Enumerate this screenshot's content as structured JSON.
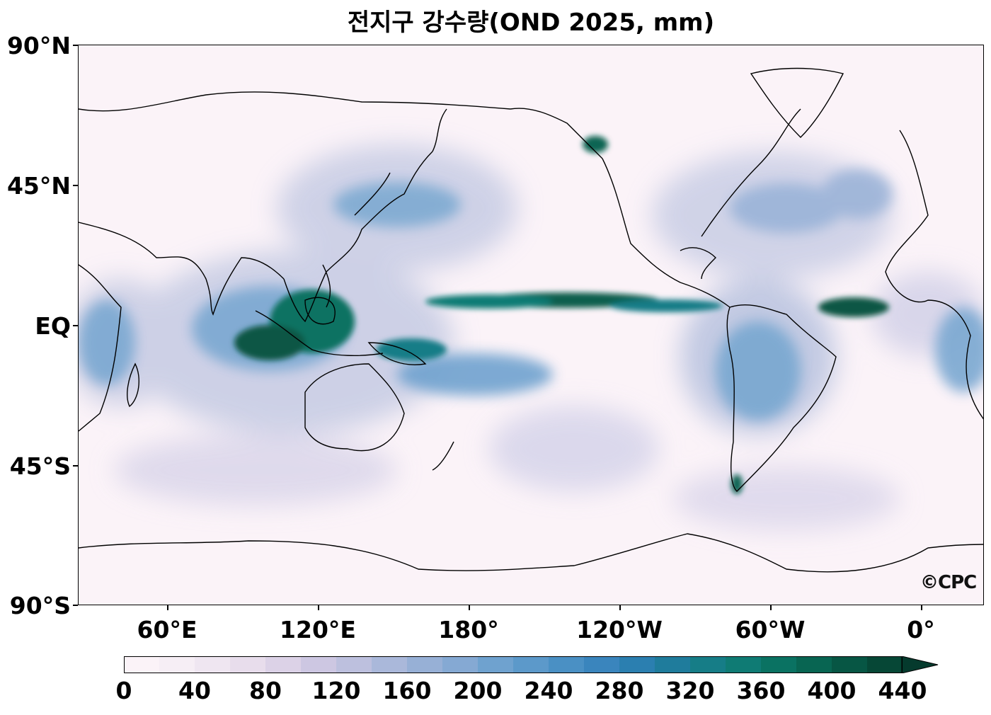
{
  "title": "전지구 강수량(OND 2025, mm)",
  "watermark": "©CPC",
  "lat_labels": [
    "90°N",
    "45°N",
    "EQ",
    "45°S",
    "90°S"
  ],
  "lon_labels": [
    "60°E",
    "120°E",
    "180°",
    "120°W",
    "60°W",
    "0°"
  ],
  "colorbar": {
    "labels": [
      "0",
      "40",
      "80",
      "120",
      "160",
      "200",
      "240",
      "280",
      "320",
      "360",
      "400",
      "440"
    ],
    "levels": [
      0,
      20,
      40,
      60,
      80,
      100,
      120,
      140,
      160,
      180,
      200,
      220,
      240,
      260,
      280,
      300,
      320,
      340,
      360,
      380,
      400,
      420,
      440
    ],
    "colors": [
      "#fbf3f8",
      "#f6eef5",
      "#efe6f1",
      "#e8ddec",
      "#dcd2e7",
      "#cdc7e2",
      "#bdc0de",
      "#aab8da",
      "#97b0d6",
      "#85a9d3",
      "#6fa2cf",
      "#5c99ca",
      "#4a90c4",
      "#3a85bd",
      "#2b7fb0",
      "#1f7c9c",
      "#167d87",
      "#0f7b74",
      "#0a7262",
      "#086552",
      "#075644",
      "#064736"
    ],
    "extend_color": "#053a2d"
  },
  "map": {
    "central_longitude": 160,
    "colors": {
      "land_border": "#000000",
      "background": "#fbf3f8",
      "heavy": "#0a5f4e",
      "medium": "#4a90c4",
      "light": "#b9c2df"
    }
  }
}
